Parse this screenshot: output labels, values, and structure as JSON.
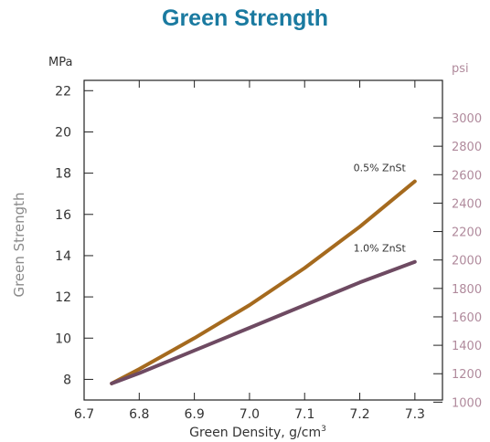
{
  "chart_data": {
    "type": "line",
    "title": "Green Strength",
    "xlabel": "Green Density, g/cm",
    "xlabel_superscript": "3",
    "ylabel": "Green Strength",
    "y_unit_left": "MPa",
    "y_unit_right": "psi",
    "xlim": [
      6.7,
      7.35
    ],
    "ylim": [
      7,
      22.5
    ],
    "x_ticks": [
      6.7,
      6.8,
      6.9,
      7.0,
      7.1,
      7.2,
      7.3
    ],
    "x_tick_labels": [
      "6.7",
      "6.8",
      "6.9",
      "7.0",
      "7.1",
      "7.2",
      "7.3"
    ],
    "y_ticks_left": [
      8,
      10,
      12,
      14,
      16,
      18,
      20,
      22
    ],
    "y_tick_labels_left": [
      "8",
      "10",
      "12",
      "14",
      "16",
      "18",
      "20",
      "22"
    ],
    "y_ticks_right_psi": [
      1000,
      1200,
      1400,
      1600,
      1800,
      2000,
      2200,
      2400,
      2600,
      2800,
      3000
    ],
    "y_tick_labels_right": [
      "1000",
      "1200",
      "1400",
      "1600",
      "1800",
      "2000",
      "2200",
      "2400",
      "2600",
      "2800",
      "3000"
    ],
    "psi_per_mpa": 145.04,
    "grid": false,
    "series": [
      {
        "name": "0.5% ZnSt",
        "color": "#a56a1e",
        "x": [
          6.75,
          6.8,
          6.9,
          7.0,
          7.1,
          7.2,
          7.3
        ],
        "y": [
          7.8,
          8.5,
          10.0,
          11.6,
          13.4,
          15.4,
          17.6
        ]
      },
      {
        "name": "1.0% ZnSt",
        "color": "#6e4a62",
        "x": [
          6.75,
          6.8,
          6.9,
          7.0,
          7.1,
          7.2,
          7.3
        ],
        "y": [
          7.8,
          8.3,
          9.4,
          10.5,
          11.6,
          12.7,
          13.7
        ]
      }
    ]
  }
}
